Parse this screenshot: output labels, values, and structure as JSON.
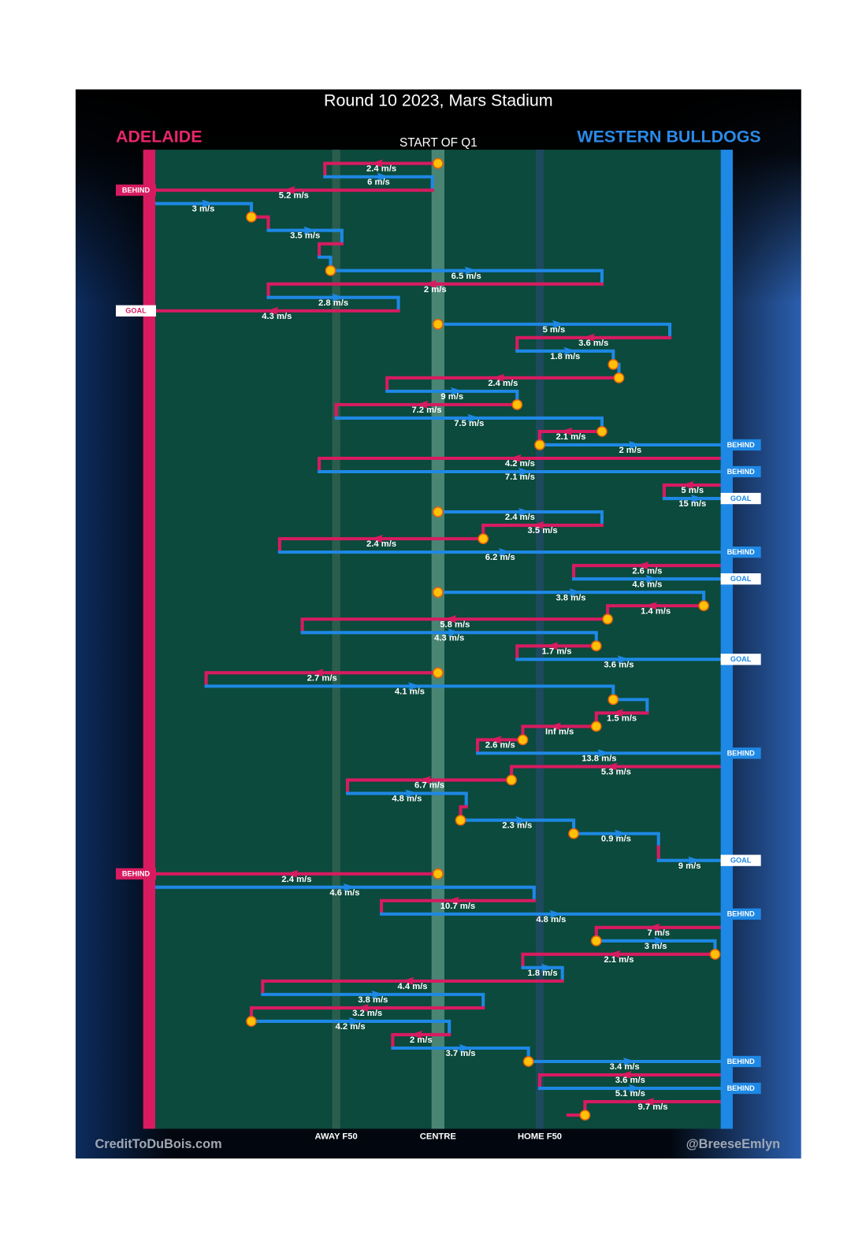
{
  "chart_data": {
    "type": "possession-chain",
    "title": "Round 10 2023, Mars Stadium",
    "subtitle": "START OF Q1",
    "credit_left": "CreditToDuBois.com",
    "credit_right": "@BreeseEmlyn",
    "teams": [
      {
        "name": "ADELAIDE",
        "color": "#d81b60"
      },
      {
        "name": "WESTERN BULLDOGS",
        "color": "#1e88e5"
      }
    ],
    "xlim": [
      0,
      100
    ],
    "xticks": [
      {
        "value": 32,
        "label": "AWAY F50"
      },
      {
        "value": 50,
        "label": "CENTRE"
      },
      {
        "value": 68,
        "label": "HOME F50"
      }
    ],
    "rows": [
      {
        "team": 0,
        "from": 50,
        "to": 30,
        "label": "2.4 m/s",
        "stop": true
      },
      {
        "team": 1,
        "from": 30,
        "to": 49,
        "label": "6 m/s"
      },
      {
        "team": 0,
        "from": 49,
        "to": 0,
        "label": "5.2 m/s",
        "result": "BEHIND"
      },
      {
        "team": 1,
        "from": 0,
        "to": 17,
        "label": "3 m/s"
      },
      {
        "team": 0,
        "from": 17,
        "to": 20,
        "stop": true
      },
      {
        "team": 1,
        "from": 20,
        "to": 33,
        "label": "3.5 m/s"
      },
      {
        "team": 0,
        "from": 33,
        "to": 29
      },
      {
        "team": 1,
        "from": 29,
        "to": 31
      },
      {
        "team": 1,
        "from": 31,
        "to": 79,
        "label": "6.5 m/s",
        "stop": true
      },
      {
        "team": 0,
        "from": 79,
        "to": 20,
        "label": "2 m/s"
      },
      {
        "team": 1,
        "from": 20,
        "to": 43,
        "label": "2.8 m/s"
      },
      {
        "team": 0,
        "from": 43,
        "to": 0,
        "label": "4.3 m/s",
        "result": "GOAL"
      },
      {
        "team": 1,
        "from": 50,
        "to": 91,
        "label": "5 m/s",
        "stop": true
      },
      {
        "team": 0,
        "from": 91,
        "to": 64,
        "label": "3.6 m/s"
      },
      {
        "team": 1,
        "from": 64,
        "to": 81,
        "label": "1.8 m/s"
      },
      {
        "team": 1,
        "from": 81,
        "to": 82,
        "stop": true
      },
      {
        "team": 0,
        "from": 82,
        "to": 41,
        "label": "2.4 m/s",
        "stop": true
      },
      {
        "team": 1,
        "from": 41,
        "to": 64,
        "label": "9 m/s"
      },
      {
        "team": 0,
        "from": 64,
        "to": 32,
        "label": "7.2 m/s",
        "stop": true
      },
      {
        "team": 1,
        "from": 32,
        "to": 79,
        "label": "7.5 m/s"
      },
      {
        "team": 0,
        "from": 79,
        "to": 68,
        "label": "2.1 m/s",
        "stop": true
      },
      {
        "team": 1,
        "from": 68,
        "to": 100,
        "label": "2 m/s",
        "stop": true,
        "result": "BEHIND"
      },
      {
        "team": 0,
        "from": 100,
        "to": 29,
        "label": "4.2 m/s"
      },
      {
        "team": 1,
        "from": 29,
        "to": 100,
        "label": "7.1 m/s",
        "result": "BEHIND"
      },
      {
        "team": 0,
        "from": 100,
        "to": 90,
        "label": "5 m/s"
      },
      {
        "team": 1,
        "from": 90,
        "to": 100,
        "label": "15 m/s",
        "result": "GOAL"
      },
      {
        "team": 1,
        "from": 50,
        "to": 79,
        "label": "2.4 m/s",
        "stop": true
      },
      {
        "team": 0,
        "from": 79,
        "to": 58,
        "label": "3.5 m/s"
      },
      {
        "team": 0,
        "from": 58,
        "to": 22,
        "label": "2.4 m/s",
        "stop": true
      },
      {
        "team": 1,
        "from": 22,
        "to": 100,
        "label": "6.2 m/s",
        "result": "BEHIND"
      },
      {
        "team": 0,
        "from": 100,
        "to": 74,
        "label": "2.6 m/s"
      },
      {
        "team": 1,
        "from": 74,
        "to": 100,
        "label": "4.6 m/s",
        "result": "GOAL"
      },
      {
        "team": 1,
        "from": 50,
        "to": 97,
        "label": "3.8 m/s",
        "stop": true
      },
      {
        "team": 0,
        "from": 97,
        "to": 80,
        "label": "1.4 m/s",
        "stop": true
      },
      {
        "team": 0,
        "from": 80,
        "to": 26,
        "label": "5.8 m/s",
        "stop": true
      },
      {
        "team": 1,
        "from": 26,
        "to": 78,
        "label": "4.3 m/s"
      },
      {
        "team": 0,
        "from": 78,
        "to": 64,
        "label": "1.7 m/s",
        "stop": true
      },
      {
        "team": 1,
        "from": 64,
        "to": 100,
        "label": "3.6 m/s",
        "result": "GOAL"
      },
      {
        "team": 0,
        "from": 50,
        "to": 9,
        "label": "2.7 m/s",
        "stop": true
      },
      {
        "team": 1,
        "from": 9,
        "to": 81,
        "label": "4.1 m/s"
      },
      {
        "team": 1,
        "from": 81,
        "to": 87,
        "stop": true
      },
      {
        "team": 0,
        "from": 87,
        "to": 78,
        "label": "1.5 m/s"
      },
      {
        "team": 0,
        "from": 78,
        "to": 65,
        "label": "Inf m/s",
        "stop": true
      },
      {
        "team": 0,
        "from": 65,
        "to": 57,
        "label": "2.6 m/s",
        "stop": true
      },
      {
        "team": 1,
        "from": 57,
        "to": 100,
        "label": "13.8 m/s",
        "result": "BEHIND"
      },
      {
        "team": 0,
        "from": 100,
        "to": 63,
        "label": "5.3 m/s"
      },
      {
        "team": 0,
        "from": 63,
        "to": 34,
        "label": "6.7 m/s",
        "stop": true
      },
      {
        "team": 1,
        "from": 34,
        "to": 55,
        "label": "4.8 m/s"
      },
      {
        "team": 0,
        "from": 55,
        "to": 54
      },
      {
        "team": 1,
        "from": 54,
        "to": 74,
        "label": "2.3 m/s",
        "stop": true
      },
      {
        "team": 1,
        "from": 74,
        "to": 89,
        "label": "0.9 m/s",
        "stop": true
      },
      {
        "team": 0,
        "from": 89,
        "to": 89
      },
      {
        "team": 1,
        "from": 89,
        "to": 100,
        "label": "9 m/s",
        "result": "GOAL"
      },
      {
        "team": 0,
        "from": 50,
        "to": 0,
        "label": "2.4 m/s",
        "stop": true,
        "result": "BEHIND"
      },
      {
        "team": 1,
        "from": 0,
        "to": 67,
        "label": "4.6 m/s"
      },
      {
        "team": 0,
        "from": 67,
        "to": 40,
        "label": "10.7 m/s"
      },
      {
        "team": 1,
        "from": 40,
        "to": 100,
        "label": "4.8 m/s",
        "result": "BEHIND"
      },
      {
        "team": 0,
        "from": 100,
        "to": 78,
        "label": "7 m/s"
      },
      {
        "team": 1,
        "from": 78,
        "to": 99,
        "label": "3 m/s",
        "stop": true
      },
      {
        "team": 0,
        "from": 99,
        "to": 65,
        "label": "2.1 m/s",
        "stop": true
      },
      {
        "team": 1,
        "from": 65,
        "to": 72,
        "label": "1.8 m/s"
      },
      {
        "team": 0,
        "from": 72,
        "to": 19,
        "label": "4.4 m/s"
      },
      {
        "team": 1,
        "from": 19,
        "to": 58,
        "label": "3.8 m/s"
      },
      {
        "team": 0,
        "from": 58,
        "to": 17,
        "label": "3.2 m/s"
      },
      {
        "team": 1,
        "from": 17,
        "to": 52,
        "label": "4.2 m/s",
        "stop": true
      },
      {
        "team": 0,
        "from": 52,
        "to": 42,
        "label": "2 m/s"
      },
      {
        "team": 1,
        "from": 42,
        "to": 66,
        "label": "3.7 m/s"
      },
      {
        "team": 1,
        "from": 66,
        "to": 100,
        "label": "3.4 m/s",
        "stop": true,
        "result": "BEHIND"
      },
      {
        "team": 0,
        "from": 100,
        "to": 68,
        "label": "3.6 m/s"
      },
      {
        "team": 1,
        "from": 68,
        "to": 100,
        "label": "5.1 m/s",
        "result": "BEHIND"
      },
      {
        "team": 0,
        "from": 100,
        "to": 76,
        "label": "9.7 m/s"
      },
      {
        "team": 0,
        "from": 76,
        "to": 73,
        "stop": true
      }
    ]
  }
}
